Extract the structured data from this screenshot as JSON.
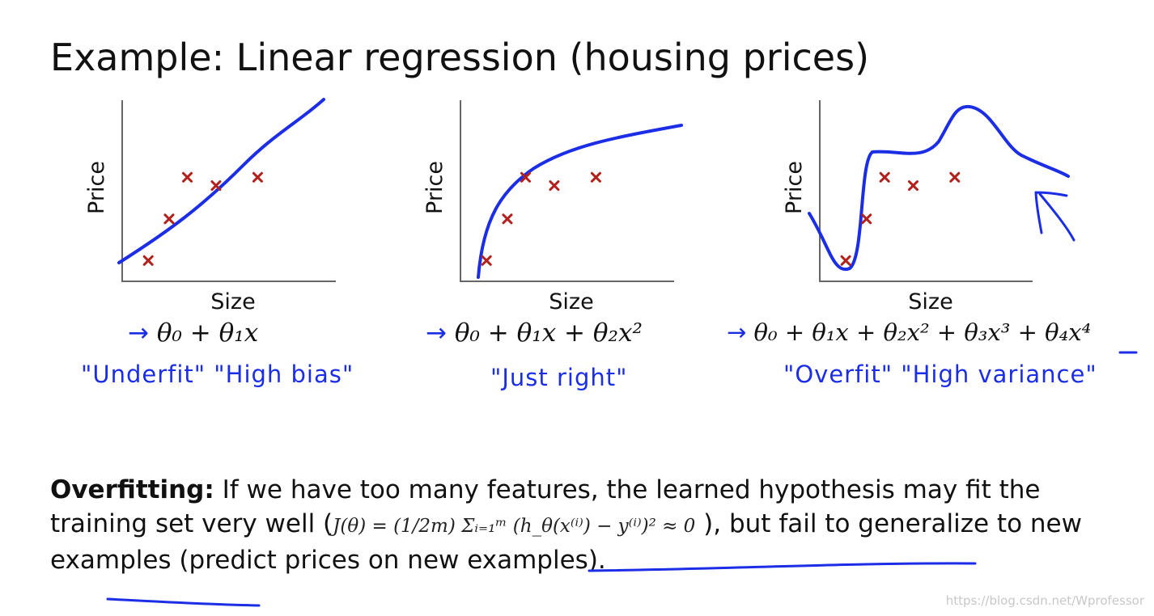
{
  "title": "Example: Linear regression (housing prices)",
  "chart_data": [
    {
      "type": "scatter",
      "title": "",
      "xlabel": "Size",
      "ylabel": "Price",
      "points": [
        [
          1.0,
          1.0
        ],
        [
          1.8,
          3.0
        ],
        [
          2.5,
          5.0
        ],
        [
          3.6,
          4.6
        ],
        [
          5.2,
          5.0
        ]
      ],
      "fit": "linear",
      "hypothesis_arrow": "→",
      "hypothesis": "θ₀ + θ₁x",
      "annotation": "\"Underfit\"  \"High bias\""
    },
    {
      "type": "scatter",
      "title": "",
      "xlabel": "Size",
      "ylabel": "Price",
      "points": [
        [
          1.0,
          1.0
        ],
        [
          1.8,
          3.0
        ],
        [
          2.5,
          5.0
        ],
        [
          3.6,
          4.6
        ],
        [
          5.2,
          5.0
        ]
      ],
      "fit": "quadratic",
      "hypothesis_arrow": "→",
      "hypothesis": "θ₀ + θ₁x + θ₂x²",
      "annotation": "\"Just right\""
    },
    {
      "type": "scatter",
      "title": "",
      "xlabel": "Size",
      "ylabel": "Price",
      "points": [
        [
          1.0,
          1.0
        ],
        [
          1.8,
          3.0
        ],
        [
          2.5,
          5.0
        ],
        [
          3.6,
          4.6
        ],
        [
          5.2,
          5.0
        ]
      ],
      "fit": "quartic",
      "hypothesis_arrow": "→",
      "hypothesis": "θ₀ + θ₁x + θ₂x² + θ₃x³ + θ₄x⁴",
      "annotation": "\"Overfit\"  \"High variance\""
    }
  ],
  "note": {
    "label": "Overfitting:",
    "text_1": " If we have too many features, the learned hypothesis may fit the training set very well (",
    "formula": "J(θ) = (1/2m) Σᵢ₌₁ᵐ (h_θ(x⁽ⁱ⁾) − y⁽ⁱ⁾)² ≈ 0",
    "text_2": " ), but fail to generalize to new examples (predict prices on new examples)."
  },
  "watermark": "https://blog.csdn.net/Wprofessor",
  "colors": {
    "ink": "#1b2ee6",
    "marker": "#b2221d",
    "axis": "#666666"
  }
}
